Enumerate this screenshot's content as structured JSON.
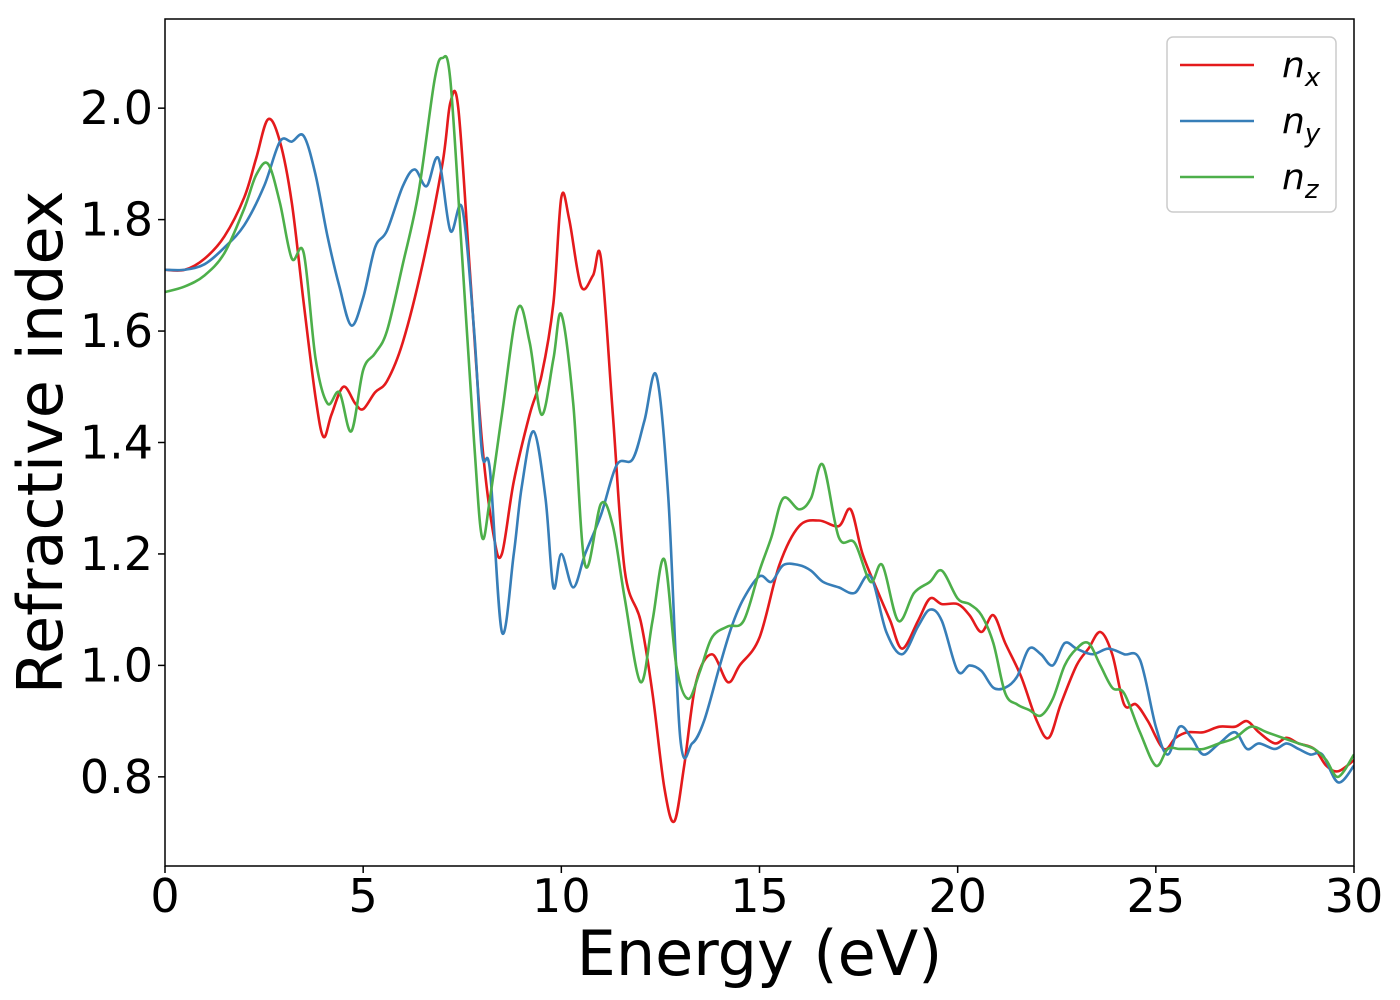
{
  "chart_data": {
    "type": "line",
    "title": "",
    "xlabel": "Energy (eV)",
    "ylabel": "Refractive index",
    "xlim": [
      0,
      30
    ],
    "ylim": [
      0.64,
      2.16
    ],
    "xticks": [
      0,
      5,
      10,
      15,
      20,
      25,
      30
    ],
    "yticks": [
      0.8,
      1.0,
      1.2,
      1.4,
      1.6,
      1.8,
      2.0
    ],
    "xtick_labels": [
      "0",
      "5",
      "10",
      "15",
      "20",
      "25",
      "30"
    ],
    "ytick_labels": [
      "0.8",
      "1.0",
      "1.2",
      "1.4",
      "1.6",
      "1.8",
      "2.0"
    ],
    "grid": false,
    "legend_position": "top-right",
    "series": [
      {
        "name": "n_x",
        "legend_base": "n",
        "legend_sub": "x",
        "color": "#e41a1c",
        "x": [
          0,
          0.5,
          1,
          1.5,
          2,
          2.3,
          2.6,
          2.9,
          3.2,
          3.5,
          3.8,
          4.0,
          4.2,
          4.5,
          4.8,
          5.0,
          5.3,
          5.6,
          6.0,
          6.5,
          7.0,
          7.2,
          7.4,
          7.7,
          8.0,
          8.3,
          8.5,
          8.8,
          9.2,
          9.5,
          9.8,
          10.0,
          10.2,
          10.5,
          10.8,
          11.0,
          11.3,
          11.6,
          12.0,
          12.3,
          12.6,
          12.85,
          13.1,
          13.4,
          13.8,
          14.2,
          14.5,
          15.0,
          15.5,
          16.0,
          16.5,
          17.0,
          17.3,
          17.6,
          18.0,
          18.3,
          18.6,
          19.0,
          19.3,
          19.6,
          20.0,
          20.3,
          20.6,
          20.9,
          21.2,
          21.6,
          22.0,
          22.3,
          22.6,
          23.0,
          23.3,
          23.6,
          23.9,
          24.2,
          24.5,
          24.8,
          25.2,
          25.5,
          25.8,
          26.2,
          26.6,
          27.0,
          27.3,
          27.6,
          28.0,
          28.3,
          28.6,
          29.0,
          29.3,
          29.6,
          30.0
        ],
        "y": [
          1.71,
          1.71,
          1.73,
          1.77,
          1.84,
          1.91,
          1.98,
          1.94,
          1.83,
          1.65,
          1.48,
          1.41,
          1.45,
          1.5,
          1.47,
          1.46,
          1.49,
          1.51,
          1.58,
          1.72,
          1.9,
          2.01,
          2.0,
          1.7,
          1.4,
          1.23,
          1.2,
          1.33,
          1.45,
          1.52,
          1.65,
          1.84,
          1.8,
          1.68,
          1.7,
          1.73,
          1.45,
          1.17,
          1.08,
          0.95,
          0.78,
          0.72,
          0.82,
          0.97,
          1.02,
          0.97,
          1.0,
          1.05,
          1.18,
          1.25,
          1.26,
          1.25,
          1.28,
          1.2,
          1.13,
          1.08,
          1.03,
          1.08,
          1.12,
          1.11,
          1.11,
          1.09,
          1.06,
          1.09,
          1.04,
          0.98,
          0.9,
          0.87,
          0.93,
          1.0,
          1.03,
          1.06,
          1.02,
          0.93,
          0.93,
          0.9,
          0.85,
          0.87,
          0.88,
          0.88,
          0.89,
          0.89,
          0.9,
          0.88,
          0.86,
          0.87,
          0.86,
          0.85,
          0.82,
          0.81,
          0.83
        ]
      },
      {
        "name": "n_y",
        "legend_base": "n",
        "legend_sub": "y",
        "color": "#377eb8",
        "x": [
          0,
          0.5,
          1,
          1.5,
          2,
          2.5,
          2.9,
          3.2,
          3.5,
          3.8,
          4.1,
          4.4,
          4.7,
          5.0,
          5.3,
          5.6,
          6.0,
          6.3,
          6.6,
          6.9,
          7.2,
          7.5,
          7.8,
          8.0,
          8.2,
          8.5,
          8.8,
          9.0,
          9.3,
          9.6,
          9.8,
          10.0,
          10.3,
          10.6,
          11.0,
          11.4,
          11.8,
          12.1,
          12.4,
          12.7,
          13.0,
          13.3,
          13.6,
          14.0,
          14.3,
          14.6,
          15.0,
          15.3,
          15.6,
          16.0,
          16.3,
          16.6,
          17.0,
          17.4,
          17.8,
          18.2,
          18.6,
          19.0,
          19.3,
          19.6,
          20.0,
          20.3,
          20.6,
          20.9,
          21.2,
          21.5,
          21.8,
          22.1,
          22.4,
          22.7,
          23.0,
          23.4,
          23.8,
          24.2,
          24.6,
          25.0,
          25.3,
          25.6,
          25.9,
          26.2,
          26.6,
          27.0,
          27.3,
          27.6,
          28.0,
          28.3,
          28.6,
          28.9,
          29.2,
          29.6,
          30.0
        ],
        "y": [
          1.71,
          1.71,
          1.72,
          1.75,
          1.79,
          1.86,
          1.94,
          1.94,
          1.95,
          1.88,
          1.77,
          1.68,
          1.61,
          1.66,
          1.75,
          1.78,
          1.86,
          1.89,
          1.86,
          1.91,
          1.78,
          1.82,
          1.6,
          1.38,
          1.35,
          1.06,
          1.2,
          1.32,
          1.42,
          1.3,
          1.14,
          1.2,
          1.14,
          1.2,
          1.27,
          1.36,
          1.37,
          1.44,
          1.52,
          1.3,
          0.87,
          0.86,
          0.9,
          1.0,
          1.07,
          1.12,
          1.16,
          1.15,
          1.18,
          1.18,
          1.17,
          1.15,
          1.14,
          1.13,
          1.16,
          1.06,
          1.02,
          1.07,
          1.1,
          1.08,
          0.99,
          1.0,
          0.99,
          0.96,
          0.96,
          0.98,
          1.03,
          1.02,
          1.0,
          1.04,
          1.03,
          1.02,
          1.03,
          1.02,
          1.01,
          0.89,
          0.84,
          0.89,
          0.87,
          0.84,
          0.86,
          0.88,
          0.85,
          0.86,
          0.85,
          0.86,
          0.85,
          0.84,
          0.84,
          0.79,
          0.82
        ]
      },
      {
        "name": "n_z",
        "legend_base": "n",
        "legend_sub": "z",
        "color": "#4daf4a",
        "x": [
          0,
          0.5,
          1,
          1.5,
          2,
          2.3,
          2.6,
          2.9,
          3.2,
          3.5,
          3.8,
          4.1,
          4.4,
          4.7,
          5.0,
          5.3,
          5.6,
          6.0,
          6.4,
          6.8,
          7.0,
          7.2,
          7.5,
          7.8,
          8.0,
          8.2,
          8.5,
          8.9,
          9.2,
          9.5,
          9.8,
          10.0,
          10.3,
          10.6,
          11.0,
          11.3,
          11.6,
          12.0,
          12.3,
          12.6,
          12.9,
          13.2,
          13.5,
          13.8,
          14.2,
          14.6,
          15.0,
          15.3,
          15.6,
          16.0,
          16.3,
          16.6,
          17.0,
          17.4,
          17.8,
          18.1,
          18.5,
          18.9,
          19.3,
          19.6,
          20.0,
          20.3,
          20.6,
          20.9,
          21.2,
          21.5,
          21.8,
          22.1,
          22.4,
          22.7,
          23.0,
          23.3,
          23.6,
          23.9,
          24.2,
          24.6,
          25.0,
          25.3,
          25.6,
          25.9,
          26.2,
          26.6,
          27.0,
          27.4,
          27.8,
          28.2,
          28.6,
          29.0,
          29.3,
          29.6,
          30.0
        ],
        "y": [
          1.67,
          1.68,
          1.7,
          1.74,
          1.82,
          1.88,
          1.9,
          1.83,
          1.73,
          1.74,
          1.55,
          1.47,
          1.49,
          1.42,
          1.53,
          1.56,
          1.6,
          1.72,
          1.85,
          2.05,
          2.09,
          2.05,
          1.73,
          1.4,
          1.23,
          1.3,
          1.45,
          1.64,
          1.58,
          1.45,
          1.55,
          1.63,
          1.47,
          1.18,
          1.29,
          1.25,
          1.12,
          0.97,
          1.08,
          1.19,
          1.0,
          0.94,
          0.99,
          1.05,
          1.07,
          1.08,
          1.17,
          1.23,
          1.3,
          1.28,
          1.3,
          1.36,
          1.23,
          1.22,
          1.15,
          1.18,
          1.08,
          1.13,
          1.15,
          1.17,
          1.12,
          1.11,
          1.09,
          1.04,
          0.95,
          0.93,
          0.92,
          0.91,
          0.94,
          1.0,
          1.03,
          1.04,
          1.0,
          0.96,
          0.95,
          0.88,
          0.82,
          0.85,
          0.85,
          0.85,
          0.85,
          0.86,
          0.87,
          0.89,
          0.88,
          0.87,
          0.86,
          0.85,
          0.83,
          0.8,
          0.84
        ]
      }
    ]
  }
}
